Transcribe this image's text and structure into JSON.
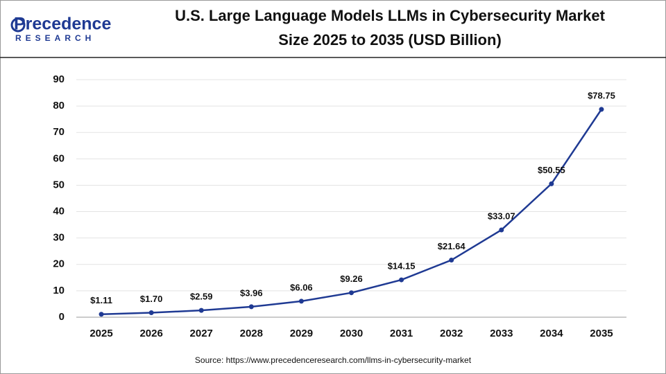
{
  "logo": {
    "name": "Precedence",
    "tagline": "RESEARCH"
  },
  "chart_data": {
    "type": "line",
    "title_lines": [
      "U.S. Large Language Models LLMs in Cybersecurity Market",
      "Size 2025 to 2035 (USD Billion)"
    ],
    "categories": [
      "2025",
      "2026",
      "2027",
      "2028",
      "2029",
      "2030",
      "2031",
      "2032",
      "2033",
      "2034",
      "2035"
    ],
    "values": [
      1.11,
      1.7,
      2.59,
      3.96,
      6.06,
      9.26,
      14.15,
      21.64,
      33.07,
      50.55,
      78.75
    ],
    "value_labels": [
      "$1.11",
      "$1.70",
      "$2.59",
      "$3.96",
      "$6.06",
      "$9.26",
      "$14.15",
      "$21.64",
      "$33.07",
      "$50.55",
      "$78.75"
    ],
    "color": "#1f3a93",
    "ylim": [
      0,
      90
    ],
    "yticks": [
      0,
      10,
      20,
      30,
      40,
      50,
      60,
      70,
      80,
      90
    ],
    "grid": true,
    "source": "Source: https://www.precedenceresearch.com/llms-in-cybersecurity-market"
  }
}
